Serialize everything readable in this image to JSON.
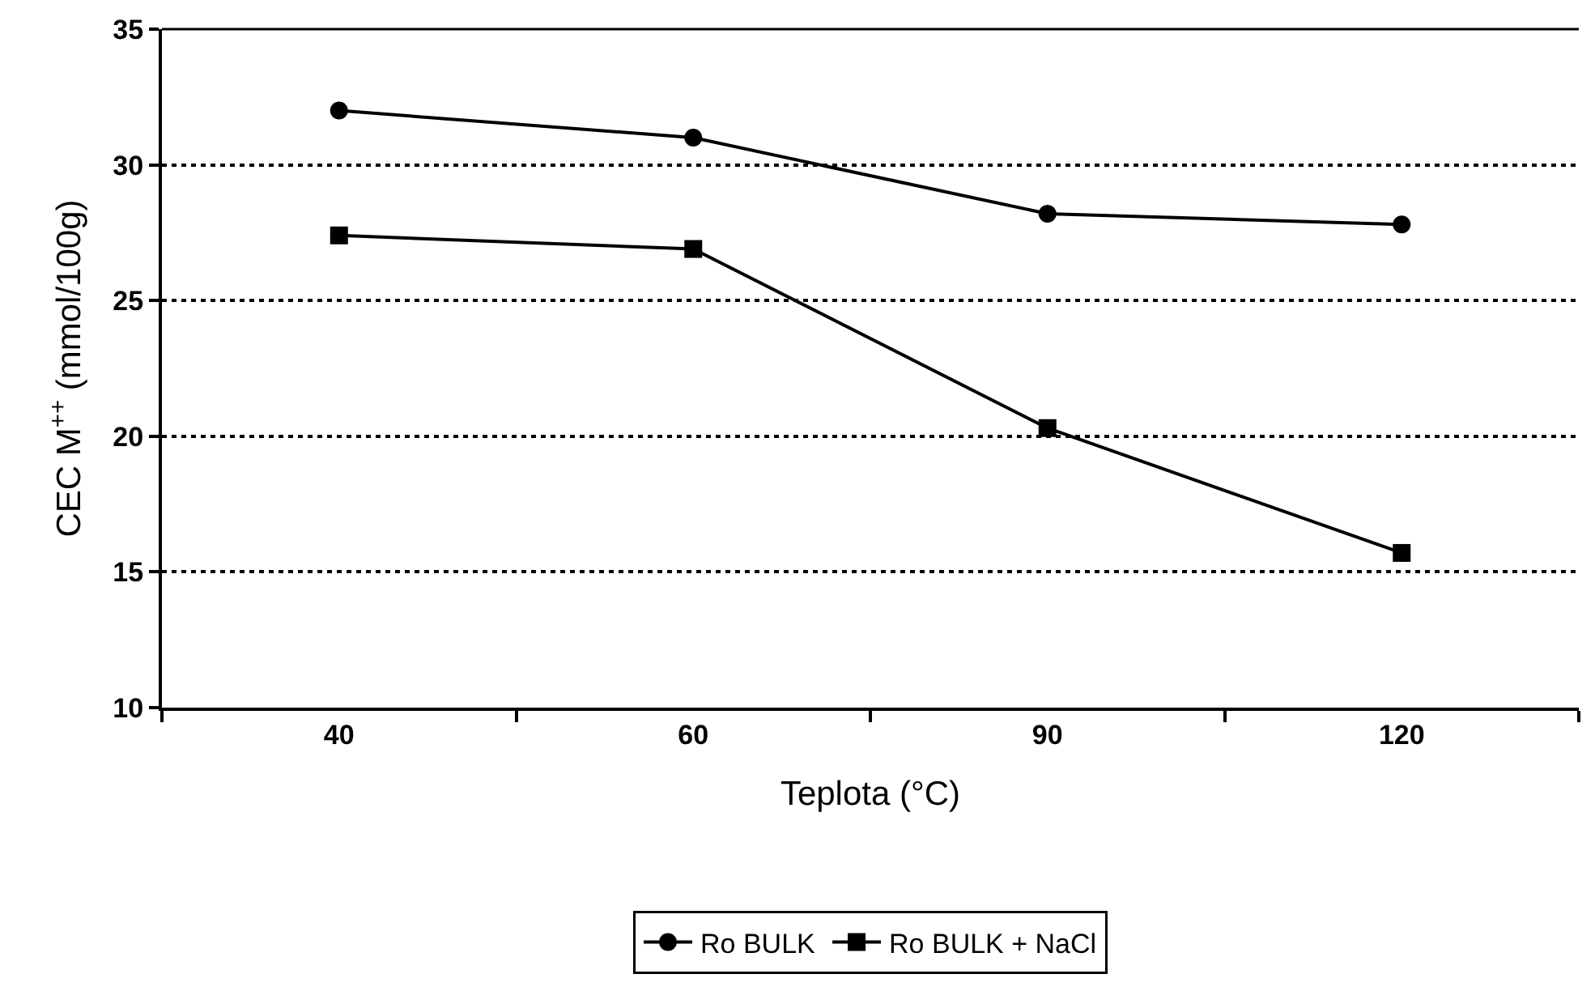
{
  "chart_data": {
    "type": "line",
    "xlabel": "Teplota (°C)",
    "ylabel": "CEC M$^{++}$ (mmol/100g)",
    "categories": [
      "40",
      "60",
      "90",
      "120"
    ],
    "series": [
      {
        "name": "Ro BULK",
        "color": "#000000",
        "marker": "circle",
        "values": [
          32,
          31,
          28.2,
          27.8
        ]
      },
      {
        "name": "Ro BULK + NaCl",
        "color": "#000000",
        "marker": "square",
        "values": [
          27.4,
          26.9,
          20.3,
          15.7
        ]
      }
    ],
    "ylim": [
      10,
      35
    ],
    "yticks": [
      10,
      15,
      20,
      25,
      30,
      35
    ],
    "grid": "y",
    "legend": "bottom",
    "line_style": "solid"
  }
}
